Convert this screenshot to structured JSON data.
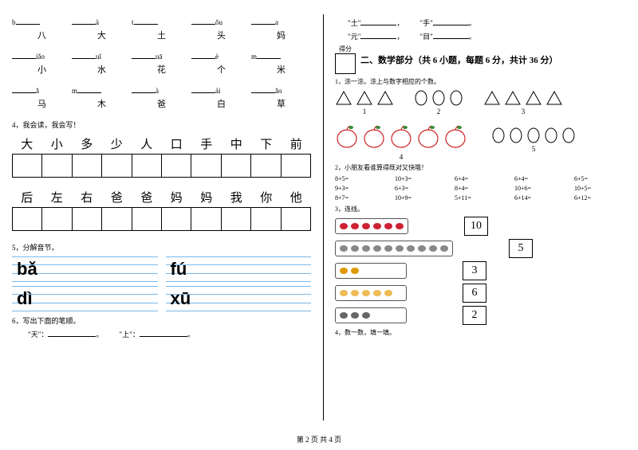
{
  "left": {
    "blanks1": [
      {
        "pre": "b",
        "suf": ""
      },
      {
        "pre": "",
        "suf": "à"
      },
      {
        "pre": "t",
        "suf": ""
      },
      {
        "pre": "",
        "suf": "ǒu"
      },
      {
        "pre": "",
        "suf": "a"
      }
    ],
    "chars1": [
      "八",
      "大",
      "土",
      "头",
      "妈"
    ],
    "blanks2": [
      {
        "pre": "",
        "suf": "iǎo"
      },
      {
        "pre": "",
        "suf": "uǐ"
      },
      {
        "pre": "",
        "suf": "uā"
      },
      {
        "pre": "",
        "suf": "è"
      },
      {
        "pre": "m",
        "suf": ""
      }
    ],
    "chars2": [
      "小",
      "水",
      "花",
      "个",
      "米"
    ],
    "blanks3": [
      {
        "pre": "",
        "suf": "ǎ"
      },
      {
        "pre": "m",
        "suf": ""
      },
      {
        "pre": "",
        "suf": "à"
      },
      {
        "pre": "",
        "suf": "ái"
      },
      {
        "pre": "",
        "suf": "ǎo"
      }
    ],
    "chars3": [
      "马",
      "木",
      "爸",
      "白",
      "草"
    ],
    "q4_label": "4，我会读，我会写！",
    "bold_row1": [
      "大",
      "小",
      "多",
      "少",
      "人",
      "口",
      "手",
      "中",
      "下",
      "前"
    ],
    "bold_row2": [
      "后",
      "左",
      "右",
      "爸",
      "爸",
      "妈",
      "妈",
      "我",
      "你",
      "他"
    ],
    "q5_label": "5，分解音节。",
    "pinyin": [
      "bǎ",
      "fú",
      "dì",
      "xū"
    ],
    "q6_label": "6，写出下面的笔顺。",
    "q6_items": [
      {
        "char": "天",
        "sep": "："
      },
      {
        "char": "上",
        "sep": "："
      }
    ],
    "pinyin_color": "#7ab8e8"
  },
  "right": {
    "fill_pairs": [
      {
        "a": "土",
        "b": "手"
      },
      {
        "a": "元",
        "b": "目"
      }
    ],
    "score_label": "得分",
    "section2_title": "二、数学部分（共 6 小题，每题 6 分，共计 36 分）",
    "q1_label": "1，涂一涂。涂上与数字相应的个数。",
    "shape_groups": [
      {
        "type": "triangle",
        "count": 3,
        "num": "1"
      },
      {
        "type": "oval",
        "count": 3,
        "num": "2"
      },
      {
        "type": "triangle",
        "count": 4,
        "num": "3"
      }
    ],
    "apple_count": 5,
    "apple_num": "4",
    "ovals_extra": {
      "count": 5,
      "num": "5"
    },
    "q2_label": "2，小朋友看谁算得既对又快哦！",
    "arith": [
      "8+5=",
      "10+3=",
      "6+4=",
      "6+4=",
      "6+5=",
      "9+3=",
      "6+3=",
      "8+4=",
      "10+6=",
      "10+5=",
      "8+7=",
      "10+9=",
      "5+11=",
      "6+14=",
      "6+12="
    ],
    "q3_label": "3，连线。",
    "match": [
      {
        "color": "#c23",
        "count": 6,
        "num": "10"
      },
      {
        "color": "#888",
        "count": 10,
        "num": "5"
      },
      {
        "color": "#d90",
        "count": 2,
        "num": "3"
      },
      {
        "color": "#eb5",
        "count": 5,
        "num": "6"
      },
      {
        "color": "#666",
        "count": 3,
        "num": "2"
      }
    ],
    "q4_label": "4，数一数，填一填。"
  },
  "footer": "第 2 页 共 4 页",
  "colors": {
    "apple_stroke": "#cc2222",
    "apple_leaf": "#3a8a3a"
  }
}
